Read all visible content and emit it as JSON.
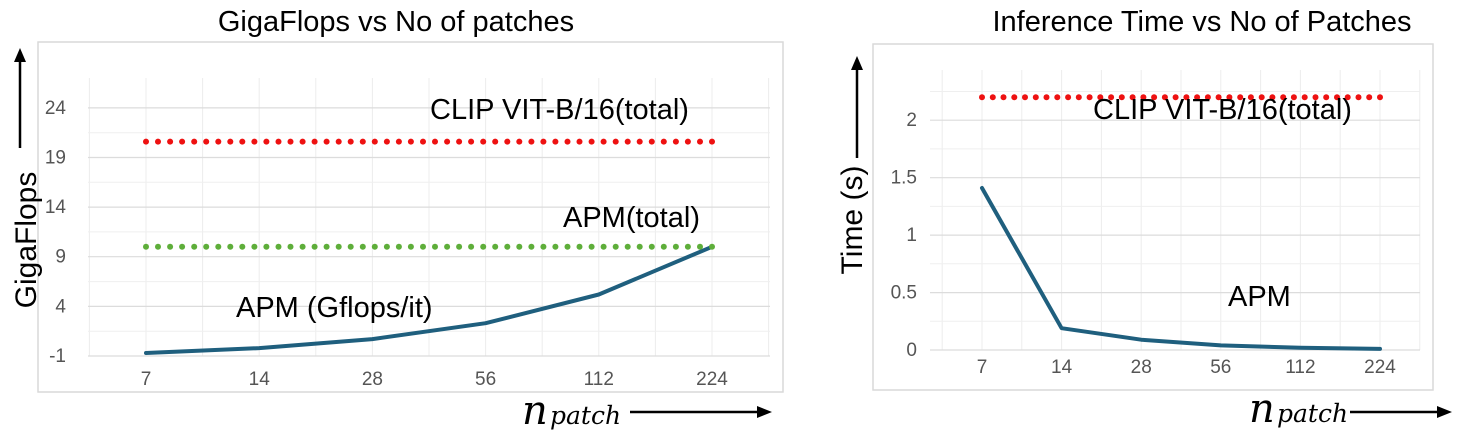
{
  "chart_data": [
    {
      "type": "line",
      "title": "GigaFlops vs No of patches",
      "ylabel": "GigaFlops",
      "xlabel_symbol": "n",
      "xlabel_subscript": "patch",
      "categories": [
        "7",
        "14",
        "28",
        "56",
        "112",
        "224"
      ],
      "yticks": [
        "-1",
        "4",
        "9",
        "14",
        "19",
        "24"
      ],
      "ylim": [
        -1,
        26
      ],
      "grid": true,
      "series": [
        {
          "values": [
            -0.7,
            -0.2,
            0.7,
            2.3,
            5.2,
            10.0
          ],
          "style": "solid",
          "color": "#1f5f7e"
        },
        {
          "values": [
            10.0,
            10.0,
            10.0,
            10.0,
            10.0,
            10.0
          ],
          "style": "dotted",
          "color": "#5eae3a"
        },
        {
          "values": [
            20.6,
            20.6,
            20.6,
            20.6,
            20.6,
            20.6
          ],
          "style": "dotted",
          "color": "#ee1111"
        }
      ],
      "annotations": [
        "CLIP VIT-B/16(total)",
        "APM(total)",
        "APM (Gflops/it)"
      ]
    },
    {
      "type": "line",
      "title": "Inference Time vs No of Patches",
      "ylabel": "Time (s)",
      "xlabel_symbol": "n",
      "xlabel_subscript": "patch",
      "categories": [
        "7",
        "14",
        "28",
        "56",
        "112",
        "224"
      ],
      "yticks": [
        "0",
        "0.5",
        "1",
        "1.5",
        "2"
      ],
      "ylim": [
        0,
        2.35
      ],
      "grid": true,
      "series": [
        {
          "values": [
            1.41,
            0.19,
            0.09,
            0.04,
            0.02,
            0.01
          ],
          "style": "solid",
          "color": "#1f5f7e"
        },
        {
          "values": [
            2.2,
            2.2,
            2.2,
            2.2,
            2.2,
            2.2
          ],
          "style": "dotted",
          "color": "#ee1111"
        }
      ],
      "annotations": [
        "CLIP VIT-B/16(total)",
        "APM"
      ]
    }
  ]
}
